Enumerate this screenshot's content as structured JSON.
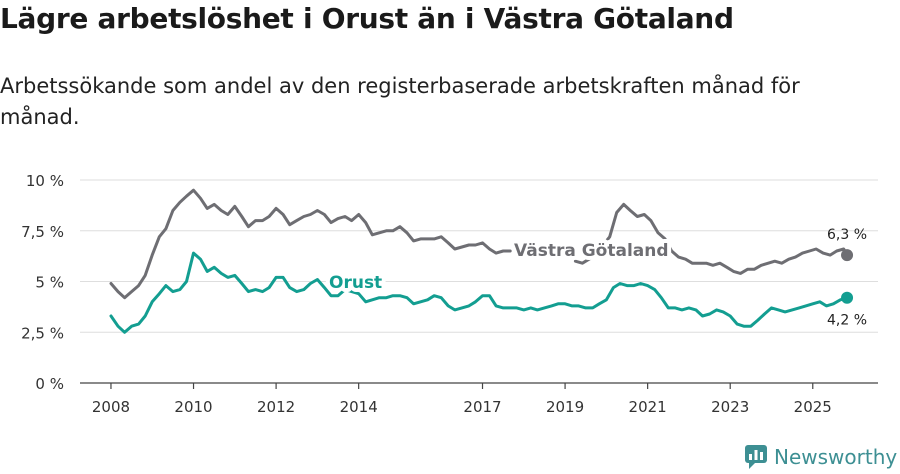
{
  "title": "Lägre arbetslöshet i Orust än i Västra Götaland",
  "subtitle": "Arbetssökande som andel av den registerbaserade arbetskraften månad för månad.",
  "brand": "Newsworthy",
  "colors": {
    "vg": "#6e6e73",
    "orust": "#139e91",
    "grid": "#dedede",
    "axis": "#444444",
    "brand": "#3d8f93"
  },
  "chart_data": {
    "type": "line",
    "title": "Lägre arbetslöshet i Orust än i Västra Götaland",
    "xlabel": "",
    "ylabel": "",
    "ylim": [
      0,
      10
    ],
    "xlim": [
      2007.25,
      2026.58
    ],
    "grid": true,
    "yticks": [
      0,
      2.5,
      5,
      7.5,
      10
    ],
    "ytick_labels": [
      "0 %",
      "2,5 %",
      "5 %",
      "7,5 %",
      "10 %"
    ],
    "xticks": [
      2008,
      2010,
      2012,
      2014,
      2017,
      2019,
      2021,
      2023,
      2025
    ],
    "xtick_labels": [
      "2008",
      "2010",
      "2012",
      "2014",
      "2017",
      "2019",
      "2021",
      "2023",
      "2025"
    ],
    "series": [
      {
        "name": "Västra Götaland",
        "label": "Västra Götaland",
        "end_label": "6,3 %",
        "x": [
          2008.0,
          2008.17,
          2008.33,
          2008.5,
          2008.67,
          2008.83,
          2009.0,
          2009.17,
          2009.33,
          2009.5,
          2009.67,
          2009.83,
          2010.0,
          2010.17,
          2010.33,
          2010.5,
          2010.67,
          2010.83,
          2011.0,
          2011.17,
          2011.33,
          2011.5,
          2011.67,
          2011.83,
          2012.0,
          2012.17,
          2012.33,
          2012.5,
          2012.67,
          2012.83,
          2013.0,
          2013.17,
          2013.33,
          2013.5,
          2013.67,
          2013.83,
          2014.0,
          2014.17,
          2014.33,
          2014.5,
          2014.67,
          2014.83,
          2015.0,
          2015.17,
          2015.33,
          2015.5,
          2015.67,
          2015.83,
          2016.0,
          2016.17,
          2016.33,
          2016.5,
          2016.67,
          2016.83,
          2017.0,
          2017.17,
          2017.33,
          2017.5,
          2017.67
        ],
        "values": [
          4.9,
          4.5,
          4.2,
          4.5,
          4.8,
          5.3,
          6.3,
          7.2,
          7.6,
          8.5,
          8.9,
          9.2,
          9.5,
          9.1,
          8.6,
          8.8,
          8.5,
          8.3,
          8.7,
          8.2,
          7.7,
          8.0,
          8.0,
          8.2,
          8.6,
          8.3,
          7.8,
          8.0,
          8.2,
          8.3,
          8.5,
          8.3,
          7.9,
          8.1,
          8.2,
          8.0,
          8.3,
          7.9,
          7.3,
          7.4,
          7.5,
          7.5,
          7.7,
          7.4,
          7.0,
          7.1,
          7.1,
          7.1,
          7.2,
          6.9,
          6.6,
          6.7,
          6.8,
          6.8,
          6.9,
          6.6,
          6.4,
          6.5,
          6.5
        ],
        "x2": [
          2019.25,
          2019.42,
          2019.58,
          2019.75,
          2019.92,
          2020.08,
          2020.25,
          2020.42,
          2020.58,
          2020.75,
          2020.92,
          2021.08,
          2021.25,
          2021.42,
          2021.58,
          2021.75,
          2021.92,
          2022.08,
          2022.25,
          2022.42,
          2022.58,
          2022.75,
          2022.92,
          2023.08,
          2023.25,
          2023.42,
          2023.58,
          2023.75,
          2023.92,
          2024.08,
          2024.25,
          2024.42,
          2024.58,
          2024.75,
          2024.92,
          2025.08,
          2025.25,
          2025.42,
          2025.58,
          2025.75,
          2025.83
        ],
        "values2": [
          6.0,
          5.9,
          6.1,
          6.3,
          6.8,
          7.2,
          8.4,
          8.8,
          8.5,
          8.2,
          8.3,
          8.0,
          7.4,
          7.1,
          6.5,
          6.2,
          6.1,
          5.9,
          5.9,
          5.9,
          5.8,
          5.9,
          5.7,
          5.5,
          5.4,
          5.6,
          5.6,
          5.8,
          5.9,
          6.0,
          5.9,
          6.1,
          6.2,
          6.4,
          6.5,
          6.6,
          6.4,
          6.3,
          6.5,
          6.6,
          6.3
        ]
      },
      {
        "name": "Orust",
        "label": "Orust",
        "end_label": "4,2 %",
        "x": [
          2008.0,
          2008.17,
          2008.33,
          2008.5,
          2008.67,
          2008.83,
          2009.0,
          2009.17,
          2009.33,
          2009.5,
          2009.67,
          2009.83,
          2010.0,
          2010.17,
          2010.33,
          2010.5,
          2010.67,
          2010.83,
          2011.0,
          2011.17,
          2011.33,
          2011.5,
          2011.67,
          2011.83,
          2012.0,
          2012.17,
          2012.33,
          2012.5,
          2012.67,
          2012.83,
          2013.0,
          2013.17,
          2013.33,
          2013.5,
          2013.67,
          2013.83,
          2014.0,
          2014.17,
          2014.33,
          2014.5,
          2014.67,
          2014.83,
          2015.0,
          2015.17,
          2015.33,
          2015.5,
          2015.67,
          2015.83,
          2016.0,
          2016.17,
          2016.33,
          2016.5,
          2016.67,
          2016.83,
          2017.0,
          2017.17,
          2017.33,
          2017.5,
          2017.67,
          2017.83,
          2018.0,
          2018.17,
          2018.33,
          2018.5,
          2018.67,
          2018.83,
          2019.0,
          2019.17,
          2019.33,
          2019.5,
          2019.67,
          2019.83,
          2020.0,
          2020.17,
          2020.33,
          2020.5,
          2020.67,
          2020.83,
          2021.0,
          2021.17,
          2021.33,
          2021.5,
          2021.67,
          2021.83,
          2022.0,
          2022.17,
          2022.33,
          2022.5,
          2022.67,
          2022.83,
          2023.0,
          2023.17,
          2023.33,
          2023.5,
          2023.67,
          2023.83,
          2024.0,
          2024.17,
          2024.33,
          2024.5,
          2024.67,
          2024.83,
          2025.0,
          2025.17,
          2025.33,
          2025.5,
          2025.67,
          2025.83
        ],
        "values": [
          3.3,
          2.8,
          2.5,
          2.8,
          2.9,
          3.3,
          4.0,
          4.4,
          4.8,
          4.5,
          4.6,
          5.0,
          6.4,
          6.1,
          5.5,
          5.7,
          5.4,
          5.2,
          5.3,
          4.9,
          4.5,
          4.6,
          4.5,
          4.7,
          5.2,
          5.2,
          4.7,
          4.5,
          4.6,
          4.9,
          5.1,
          4.7,
          4.3,
          4.3,
          4.6,
          4.5,
          4.4,
          4.0,
          4.1,
          4.2,
          4.2,
          4.3,
          4.3,
          4.2,
          3.9,
          4.0,
          4.1,
          4.3,
          4.2,
          3.8,
          3.6,
          3.7,
          3.8,
          4.0,
          4.3,
          4.3,
          3.8,
          3.7,
          3.7,
          3.7,
          3.6,
          3.7,
          3.6,
          3.7,
          3.8,
          3.9,
          3.9,
          3.8,
          3.8,
          3.7,
          3.7,
          3.9,
          4.1,
          4.7,
          4.9,
          4.8,
          4.8,
          4.9,
          4.8,
          4.6,
          4.2,
          3.7,
          3.7,
          3.6,
          3.7,
          3.6,
          3.3,
          3.4,
          3.6,
          3.5,
          3.3,
          2.9,
          2.8,
          2.8,
          3.1,
          3.4,
          3.7,
          3.6,
          3.5,
          3.6,
          3.7,
          3.8,
          3.9,
          4.0,
          3.8,
          3.9,
          4.1,
          4.2
        ]
      }
    ]
  }
}
